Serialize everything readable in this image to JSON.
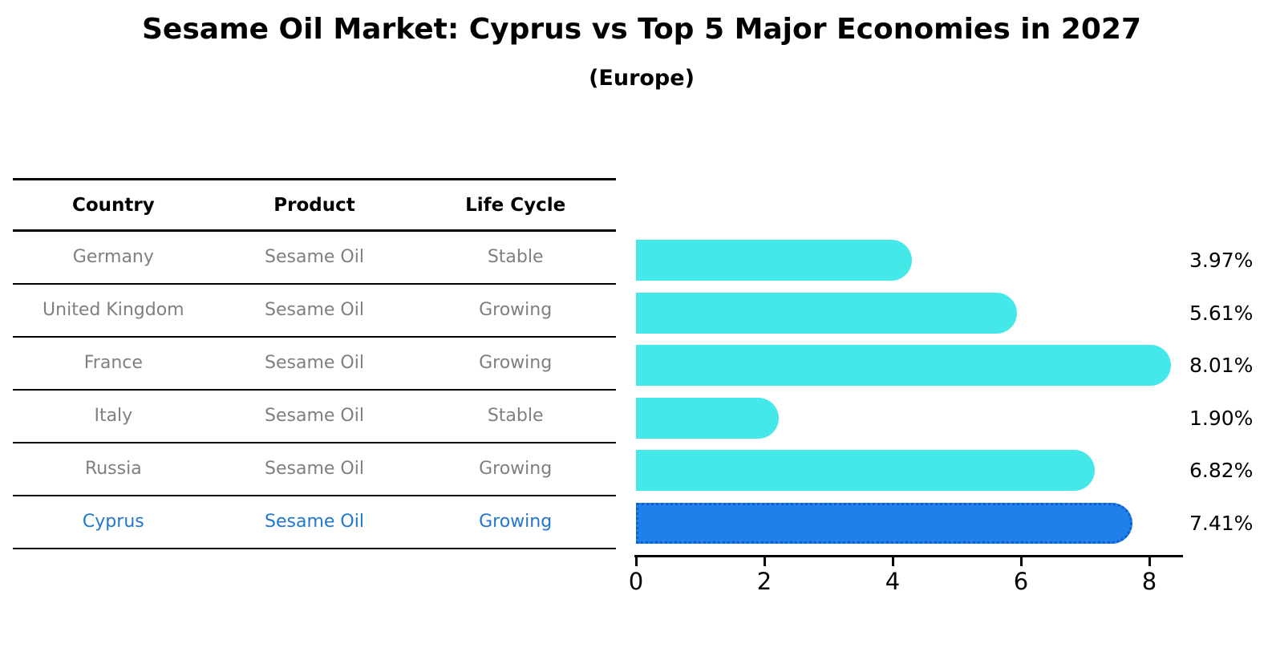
{
  "title": "Sesame Oil Market: Cyprus vs Top 5 Major Economies in 2027",
  "subtitle": "(Europe)",
  "table": {
    "headers": [
      "Country",
      "Product",
      "Life Cycle"
    ],
    "rows": [
      {
        "country": "Germany",
        "product": "Sesame Oil",
        "life_cycle": "Stable",
        "highlighted": false
      },
      {
        "country": "United Kingdom",
        "product": "Sesame Oil",
        "life_cycle": "Growing",
        "highlighted": false
      },
      {
        "country": "France",
        "product": "Sesame Oil",
        "life_cycle": "Growing",
        "highlighted": false
      },
      {
        "country": "Italy",
        "product": "Sesame Oil",
        "life_cycle": "Stable",
        "highlighted": false
      },
      {
        "country": "Russia",
        "product": "Sesame Oil",
        "life_cycle": "Growing",
        "highlighted": false
      },
      {
        "country": "Cyprus",
        "product": "Sesame Oil",
        "life_cycle": "Growing",
        "highlighted": true
      }
    ]
  },
  "chart_data": {
    "type": "bar",
    "orientation": "horizontal",
    "title": "Sesame Oil Market: Cyprus vs Top 5 Major Economies in 2027 (Europe)",
    "categories": [
      "Germany",
      "United Kingdom",
      "France",
      "Italy",
      "Russia",
      "Cyprus"
    ],
    "values": [
      3.97,
      5.61,
      8.01,
      1.9,
      6.82,
      7.41
    ],
    "value_labels": [
      "3.97%",
      "5.61%",
      "8.01%",
      "1.90%",
      "6.82%",
      "7.41%"
    ],
    "x_ticks": [
      0,
      2,
      4,
      6,
      8
    ],
    "xlim": [
      0,
      8.5
    ],
    "grid": false,
    "legend": "none",
    "highlight_index": 5,
    "colors": {
      "bar": "#45e8e8",
      "highlight_bar": "#1e80e8",
      "highlight_edge": "#0d5fd0",
      "axis": "#000000",
      "row_text": "#7f7f7f",
      "highlight_text": "#2277cc"
    }
  }
}
